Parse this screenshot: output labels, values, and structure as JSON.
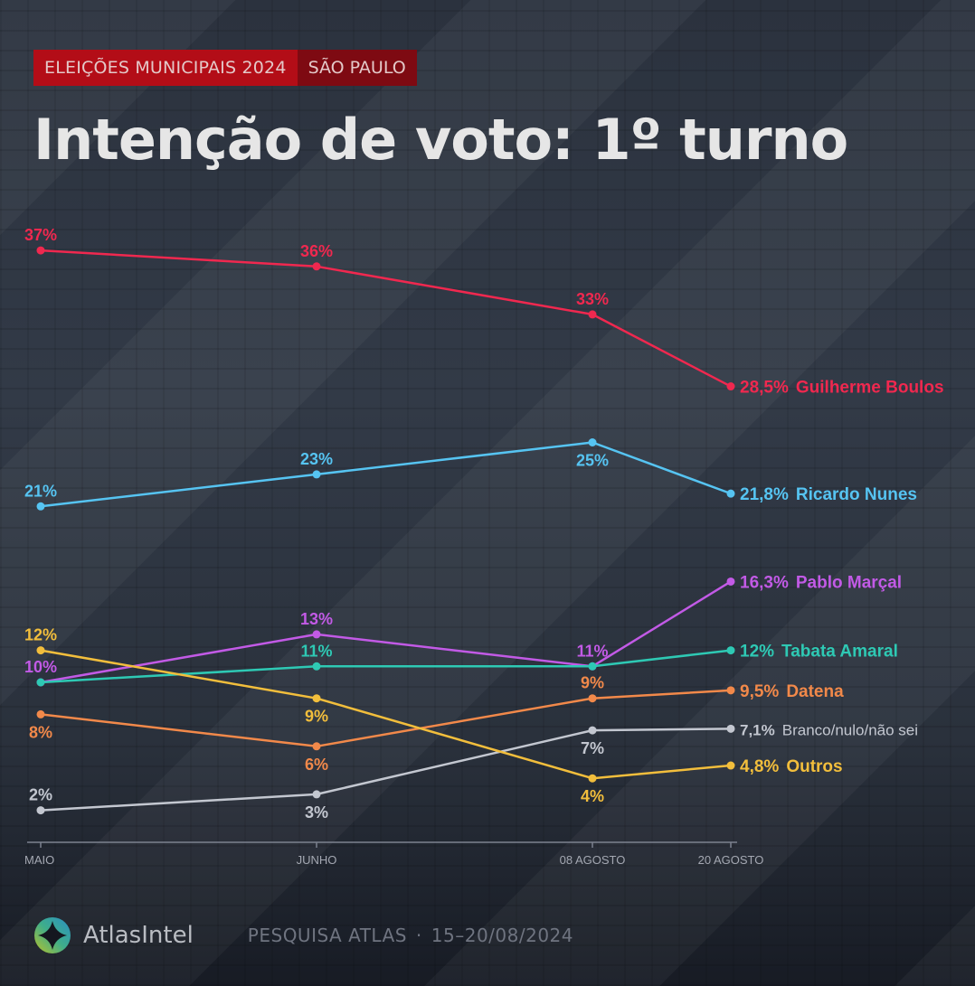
{
  "header": {
    "tag_primary": "ELEIÇÕES MUNICIPAIS 2024",
    "tag_secondary": "SÃO PAULO",
    "title": "Intenção de voto: 1º turno"
  },
  "colors": {
    "tag_primary_bg": "#b30d17",
    "tag_secondary_bg": "#7e0a12",
    "background": "#2a313d"
  },
  "chart_data": {
    "type": "line",
    "title": "Intenção de voto: 1º turno",
    "xlabel": "",
    "ylabel": "",
    "x": [
      "MAIO",
      "JUNHO",
      "08 AGOSTO",
      "20 AGOSTO"
    ],
    "ylim": [
      0,
      40
    ],
    "grid": false,
    "legend": "inline-right",
    "series": [
      {
        "name": "Guilherme Boulos",
        "color": "#f0284f",
        "values": [
          37,
          36,
          33,
          28.5
        ],
        "labels": [
          "37%",
          "36%",
          "33%",
          "28,5%"
        ],
        "label_pos": [
          "above",
          "above",
          "above",
          "end"
        ]
      },
      {
        "name": "Ricardo Nunes",
        "color": "#56c4f2",
        "values": [
          21,
          23,
          25,
          21.8
        ],
        "labels": [
          "21%",
          "23%",
          "25%",
          "21,8%"
        ],
        "label_pos": [
          "above",
          "above",
          "below",
          "end"
        ]
      },
      {
        "name": "Pablo Marçal",
        "color": "#c25ae6",
        "values": [
          10,
          13,
          11,
          16.3
        ],
        "labels": [
          "10%",
          "13%",
          "11%",
          "16,3%"
        ],
        "label_pos": [
          "above",
          "above",
          "above",
          "end"
        ]
      },
      {
        "name": "Tabata Amaral",
        "color": "#2ec9b4",
        "values": [
          10,
          11,
          11,
          12
        ],
        "labels": [
          "",
          "11%",
          "",
          "12%"
        ],
        "label_pos": [
          "none",
          "above",
          "none",
          "end"
        ]
      },
      {
        "name": "Datena",
        "color": "#f2894a",
        "values": [
          8,
          6,
          9,
          9.5
        ],
        "labels": [
          "8%",
          "6%",
          "9%",
          "9,5%"
        ],
        "label_pos": [
          "below",
          "below",
          "above",
          "end"
        ]
      },
      {
        "name": "Branco/nulo/não sei",
        "color": "#c3c7d0",
        "values": [
          2,
          3,
          7,
          7.1
        ],
        "labels": [
          "2%",
          "3%",
          "7%",
          "7,1%"
        ],
        "label_pos": [
          "above",
          "below",
          "below",
          "end"
        ]
      },
      {
        "name": "Outros",
        "color": "#f2be3c",
        "values": [
          12,
          9,
          4,
          4.8
        ],
        "labels": [
          "12%",
          "9%",
          "4%",
          "4,8%"
        ],
        "label_pos": [
          "above",
          "below",
          "below",
          "end"
        ]
      }
    ]
  },
  "footer": {
    "brand": "AtlasIntel",
    "source": "PESQUISA ATLAS",
    "separator": "·",
    "dates": "15–20/08/2024"
  }
}
